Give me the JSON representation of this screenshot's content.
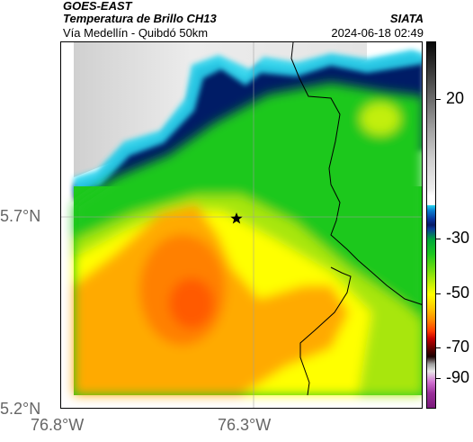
{
  "header": {
    "satellite": "GOES-EAST",
    "product": "Temperatura de Brillo CH13",
    "route": "Vía Medellín - Quibdó 50km",
    "organization": "SIATA",
    "timestamp": "2024-06-18 02:49"
  },
  "map": {
    "y_ticks": [
      "5.7°N",
      "5.2°N"
    ],
    "x_ticks": [
      "76.8°W",
      "76.3°W"
    ],
    "marker": "star",
    "colors": {
      "cold_cloud": "#061a66",
      "cyan_edge": "#2ad6ef",
      "green": "#1ec81e",
      "yellow": "#ffff00",
      "orange": "#ff8a00",
      "warm_core": "#ff5a00",
      "clear_sky": "#ffffff"
    }
  },
  "colorbar": {
    "ticks": [
      "20",
      "-30",
      "-50",
      "-70",
      "-90"
    ]
  }
}
